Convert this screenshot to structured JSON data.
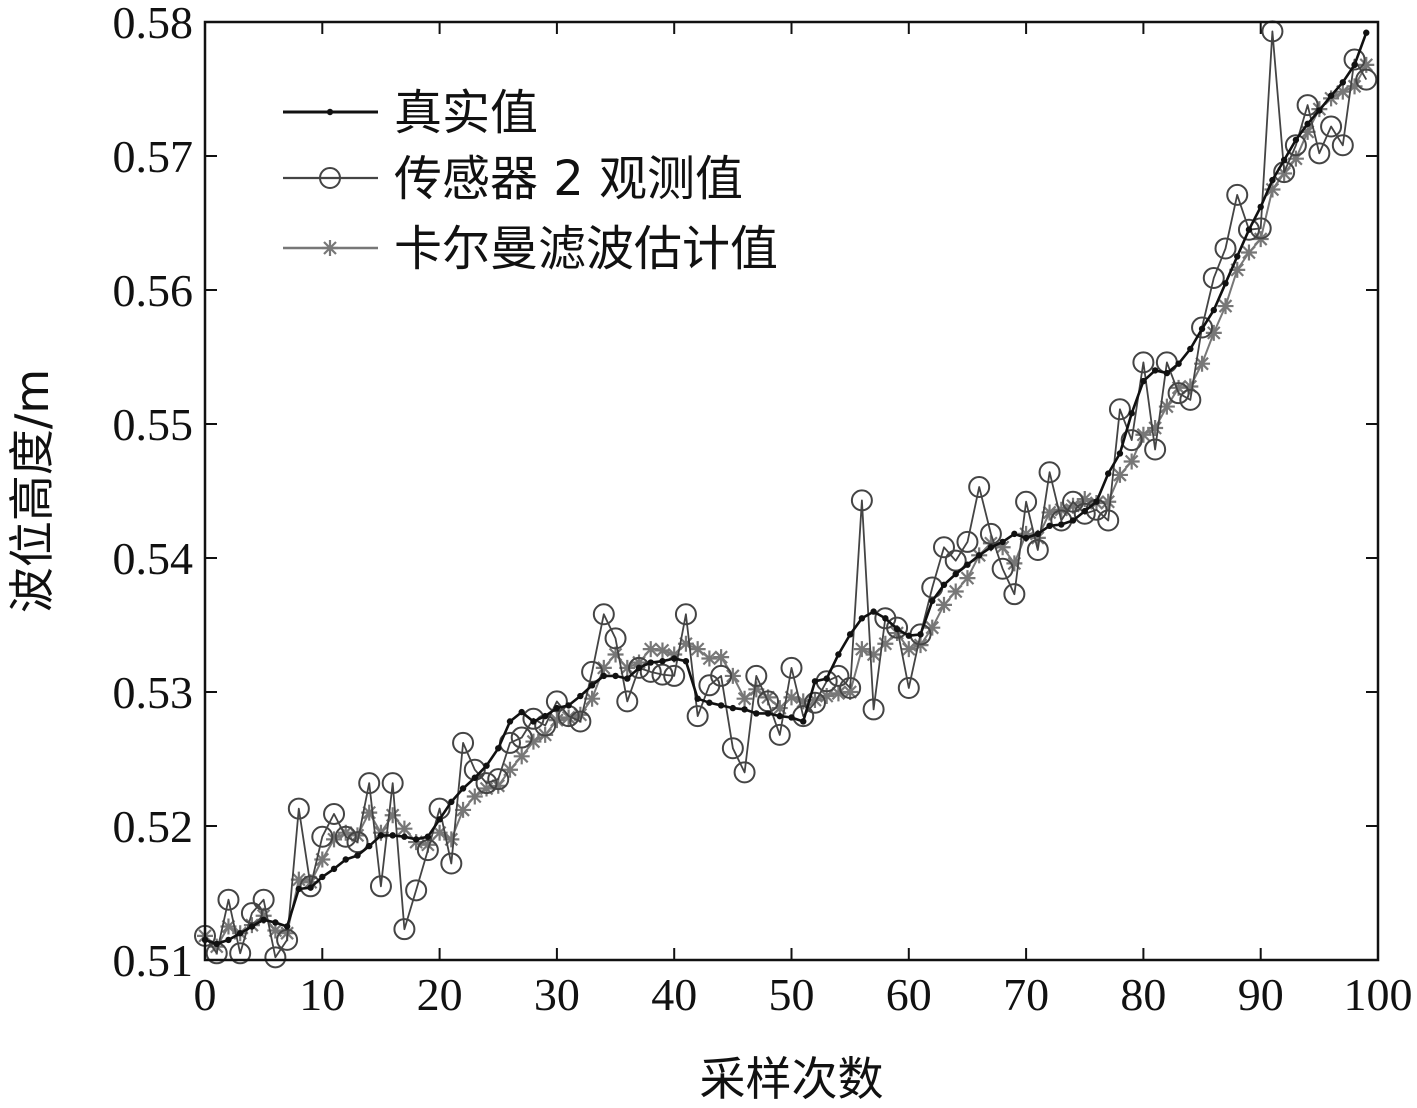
{
  "chart_data": {
    "type": "line",
    "xlabel": "采样次数",
    "ylabel": "波位高度/m",
    "xlim": [
      0,
      100
    ],
    "ylim": [
      0.51,
      0.58
    ],
    "xticks": [
      0,
      10,
      20,
      30,
      40,
      50,
      60,
      70,
      80,
      90,
      100
    ],
    "yticks": [
      0.51,
      0.52,
      0.53,
      0.54,
      0.55,
      0.56,
      0.57,
      0.58
    ],
    "xtick_labels": [
      "0",
      "10",
      "20",
      "30",
      "40",
      "50",
      "60",
      "70",
      "80",
      "90",
      "100"
    ],
    "ytick_labels": [
      "0.51",
      "0.52",
      "0.53",
      "0.54",
      "0.55",
      "0.56",
      "0.57",
      "0.58"
    ],
    "grid": false,
    "legend_position": "top-left",
    "x": [
      0,
      1,
      2,
      3,
      4,
      5,
      6,
      7,
      8,
      9,
      10,
      11,
      12,
      13,
      14,
      15,
      16,
      17,
      18,
      19,
      20,
      21,
      22,
      23,
      24,
      25,
      26,
      27,
      28,
      29,
      30,
      31,
      32,
      33,
      34,
      35,
      36,
      37,
      38,
      39,
      40,
      41,
      42,
      43,
      44,
      45,
      46,
      47,
      48,
      49,
      50,
      51,
      52,
      53,
      54,
      55,
      56,
      57,
      58,
      59,
      60,
      61,
      62,
      63,
      64,
      65,
      66,
      67,
      68,
      69,
      70,
      71,
      72,
      73,
      74,
      75,
      76,
      77,
      78,
      79,
      80,
      81,
      82,
      83,
      84,
      85,
      86,
      87,
      88,
      89,
      90,
      91,
      92,
      93,
      94,
      95,
      96,
      97,
      98,
      99
    ],
    "series": [
      {
        "name": "真实值",
        "color": "#111111",
        "marker": "dot",
        "values": [
          0.5115,
          0.5112,
          0.5115,
          0.512,
          0.5125,
          0.513,
          0.5128,
          0.5125,
          0.5153,
          0.5154,
          0.5162,
          0.5168,
          0.5175,
          0.5178,
          0.5185,
          0.5193,
          0.5193,
          0.5192,
          0.519,
          0.5192,
          0.5205,
          0.5218,
          0.5228,
          0.5236,
          0.5245,
          0.5258,
          0.5278,
          0.5285,
          0.5278,
          0.5282,
          0.5288,
          0.529,
          0.5297,
          0.5305,
          0.5312,
          0.5312,
          0.531,
          0.5318,
          0.5322,
          0.5323,
          0.5325,
          0.5323,
          0.5295,
          0.5292,
          0.529,
          0.5288,
          0.5287,
          0.5284,
          0.5284,
          0.5282,
          0.5281,
          0.5278,
          0.5308,
          0.531,
          0.5328,
          0.5343,
          0.5355,
          0.536,
          0.5355,
          0.5347,
          0.5342,
          0.5343,
          0.5368,
          0.538,
          0.5388,
          0.5395,
          0.5402,
          0.5408,
          0.5412,
          0.5418,
          0.5415,
          0.5418,
          0.5424,
          0.5425,
          0.5428,
          0.5435,
          0.5442,
          0.5463,
          0.5478,
          0.5508,
          0.5532,
          0.554,
          0.5538,
          0.5545,
          0.5556,
          0.5571,
          0.5585,
          0.5605,
          0.5625,
          0.5645,
          0.5662,
          0.5682,
          0.5697,
          0.5712,
          0.5724,
          0.5734,
          0.5745,
          0.5755,
          0.5768,
          0.5792
        ]
      },
      {
        "name": "传感器 2 观测值",
        "color": "#444444",
        "marker": "circle",
        "values": [
          0.5118,
          0.5105,
          0.5145,
          0.5105,
          0.5135,
          0.5145,
          0.5102,
          0.5115,
          0.5213,
          0.5155,
          0.5192,
          0.5209,
          0.5192,
          0.5188,
          0.5232,
          0.5155,
          0.5232,
          0.5123,
          0.5152,
          0.5182,
          0.5213,
          0.5172,
          0.5262,
          0.5242,
          0.5232,
          0.5235,
          0.5262,
          0.5266,
          0.528,
          0.5275,
          0.5293,
          0.5282,
          0.5278,
          0.5315,
          0.5358,
          0.534,
          0.5293,
          0.5318,
          0.5315,
          0.5313,
          0.5312,
          0.5358,
          0.5282,
          0.5305,
          0.5312,
          0.5258,
          0.524,
          0.5312,
          0.5293,
          0.5268,
          0.5318,
          0.5282,
          0.5292,
          0.5308,
          0.5312,
          0.5303,
          0.5443,
          0.5287,
          0.5355,
          0.5348,
          0.5303,
          0.5343,
          0.5378,
          0.5408,
          0.5398,
          0.5412,
          0.5453,
          0.5418,
          0.5392,
          0.5373,
          0.5442,
          0.5406,
          0.5464,
          0.5428,
          0.5442,
          0.5433,
          0.5436,
          0.5428,
          0.5511,
          0.5488,
          0.5546,
          0.5481,
          0.5546,
          0.5523,
          0.5518,
          0.5572,
          0.5609,
          0.5631,
          0.5671,
          0.5645,
          0.5646,
          0.5793,
          0.5688,
          0.5708,
          0.5738,
          0.5702,
          0.5722,
          0.5708,
          0.5772,
          0.5757
        ]
      },
      {
        "name": "卡尔曼滤波估计值",
        "color": "#777777",
        "marker": "star",
        "values": [
          0.5118,
          0.511,
          0.5125,
          0.512,
          0.5126,
          0.5133,
          0.5122,
          0.512,
          0.516,
          0.5158,
          0.5175,
          0.519,
          0.5195,
          0.5193,
          0.521,
          0.5195,
          0.5208,
          0.5198,
          0.5188,
          0.5186,
          0.5195,
          0.519,
          0.5212,
          0.5222,
          0.5228,
          0.523,
          0.5242,
          0.5252,
          0.5263,
          0.5268,
          0.5279,
          0.5281,
          0.5283,
          0.5295,
          0.5318,
          0.5328,
          0.5318,
          0.5322,
          0.5332,
          0.5331,
          0.5328,
          0.5336,
          0.5332,
          0.5325,
          0.5326,
          0.5312,
          0.5295,
          0.5302,
          0.5296,
          0.5288,
          0.5296,
          0.5293,
          0.5294,
          0.5297,
          0.5299,
          0.53,
          0.5332,
          0.5328,
          0.5336,
          0.5344,
          0.5332,
          0.5335,
          0.5348,
          0.5365,
          0.5375,
          0.5385,
          0.5402,
          0.5411,
          0.5408,
          0.5396,
          0.5418,
          0.5415,
          0.5434,
          0.5436,
          0.5439,
          0.5444,
          0.5441,
          0.5442,
          0.5462,
          0.5472,
          0.5492,
          0.5497,
          0.5513,
          0.5527,
          0.5528,
          0.5545,
          0.5568,
          0.5588,
          0.5615,
          0.5628,
          0.5638,
          0.5675,
          0.5687,
          0.5698,
          0.5718,
          0.5735,
          0.5743,
          0.5748,
          0.5752,
          0.5768
        ]
      }
    ]
  }
}
